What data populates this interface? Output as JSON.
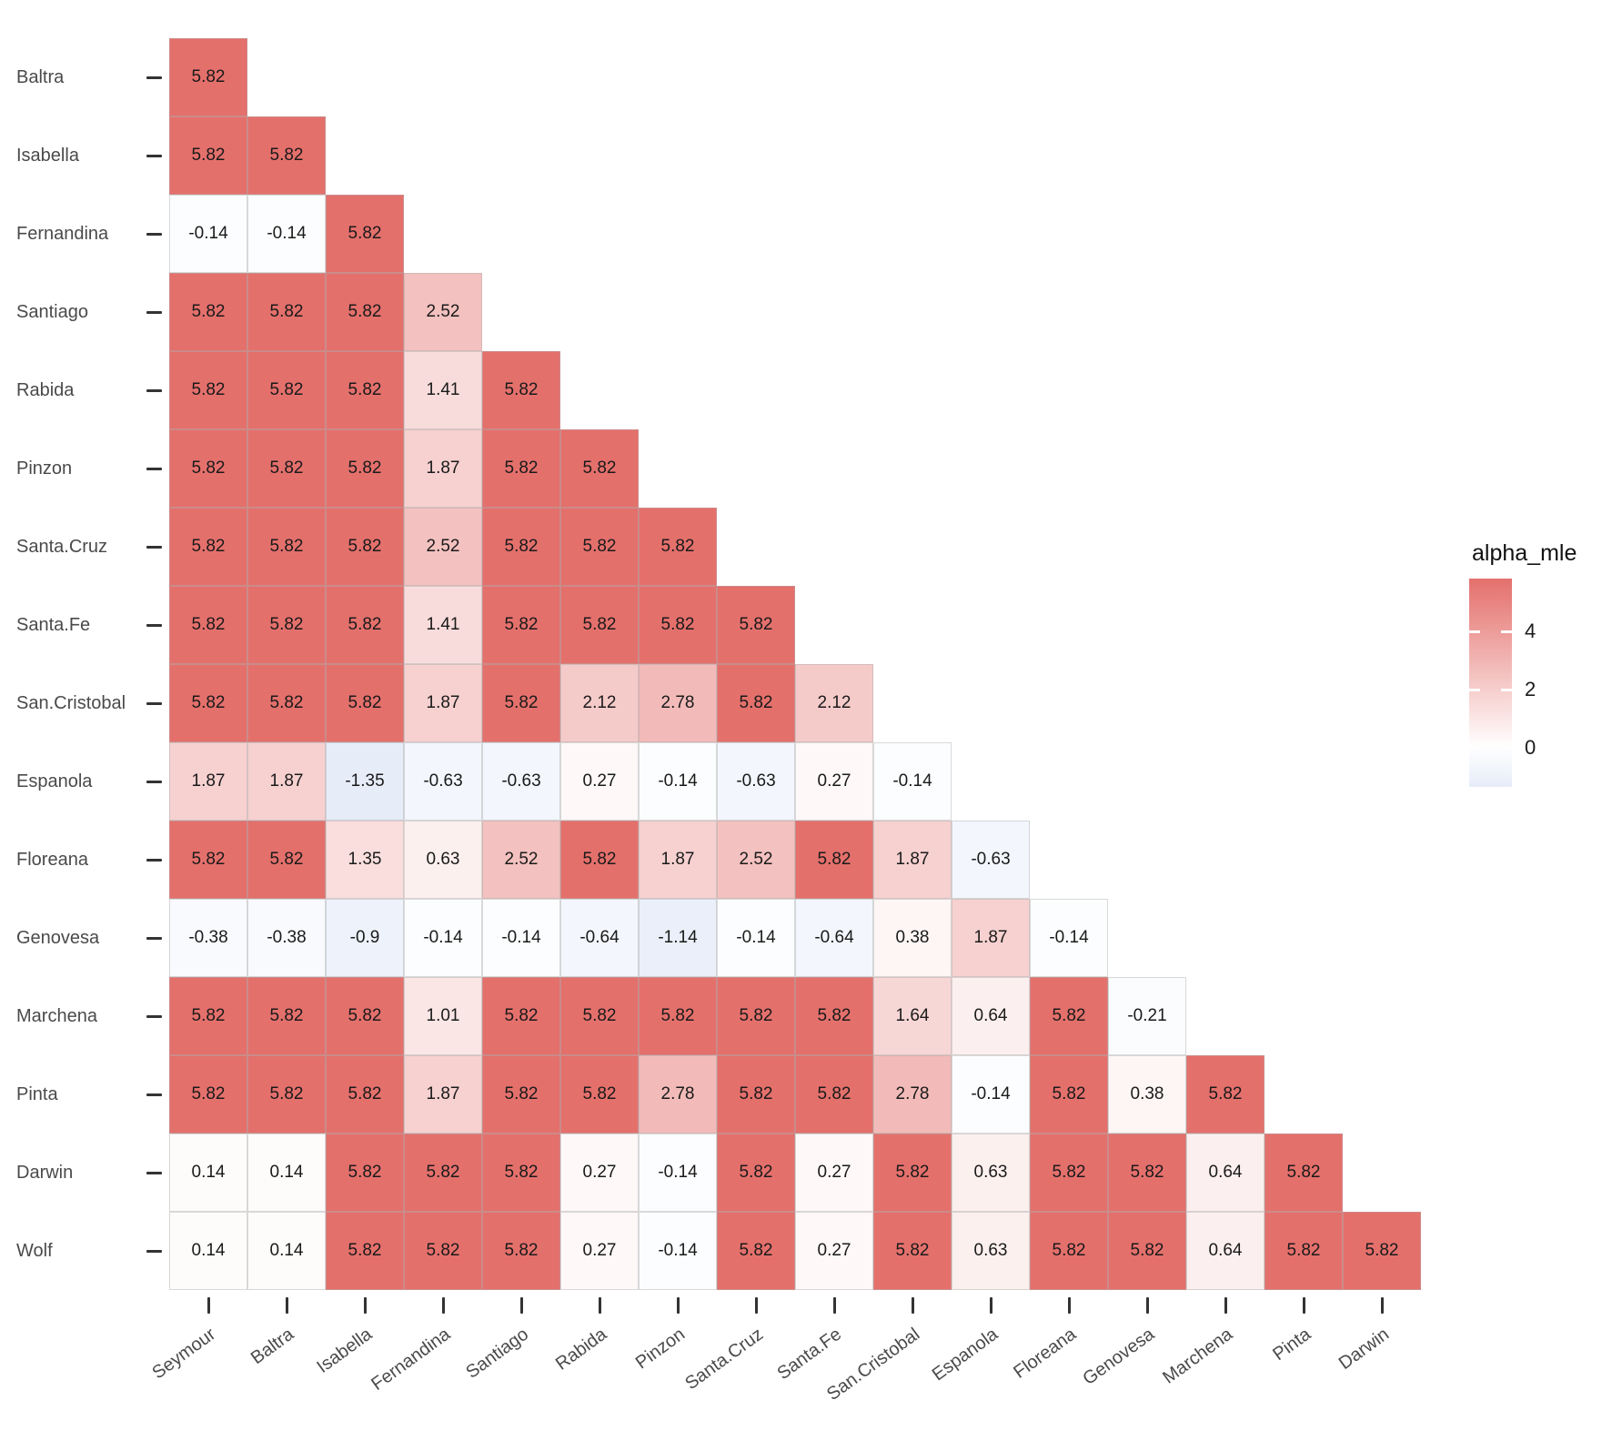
{
  "chart_data": {
    "type": "heatmap",
    "shape": "lower-triangular-matrix",
    "title": "",
    "xlabel": "",
    "ylabel": "",
    "grid": false,
    "legend_title": "alpha_mle",
    "legend_position": "right",
    "legend_ticks": [
      4,
      2,
      0
    ],
    "color_scale": {
      "high_color": "#e4706c",
      "mid_color": "#ffffff",
      "low_color": "#93ade1",
      "midpoint": 0,
      "symmetric_limit": 5.82,
      "legend_domain_max": 5.82,
      "legend_domain_min": -1.35
    },
    "rows": [
      "Baltra",
      "Isabella",
      "Fernandina",
      "Santiago",
      "Rabida",
      "Pinzon",
      "Santa.Cruz",
      "Santa.Fe",
      "San.Cristobal",
      "Espanola",
      "Floreana",
      "Genovesa",
      "Marchena",
      "Pinta",
      "Darwin",
      "Wolf"
    ],
    "columns": [
      "Seymour",
      "Baltra",
      "Isabella",
      "Fernandina",
      "Santiago",
      "Rabida",
      "Pinzon",
      "Santa.Cruz",
      "Santa.Fe",
      "San.Cristobal",
      "Espanola",
      "Floreana",
      "Genovesa",
      "Marchena",
      "Pinta",
      "Darwin"
    ],
    "values": [
      [
        "5.82"
      ],
      [
        "5.82",
        "5.82"
      ],
      [
        "-0.14",
        "-0.14",
        "5.82"
      ],
      [
        "5.82",
        "5.82",
        "5.82",
        "2.52"
      ],
      [
        "5.82",
        "5.82",
        "5.82",
        "1.41",
        "5.82"
      ],
      [
        "5.82",
        "5.82",
        "5.82",
        "1.87",
        "5.82",
        "5.82"
      ],
      [
        "5.82",
        "5.82",
        "5.82",
        "2.52",
        "5.82",
        "5.82",
        "5.82"
      ],
      [
        "5.82",
        "5.82",
        "5.82",
        "1.41",
        "5.82",
        "5.82",
        "5.82",
        "5.82"
      ],
      [
        "5.82",
        "5.82",
        "5.82",
        "1.87",
        "5.82",
        "2.12",
        "2.78",
        "5.82",
        "2.12"
      ],
      [
        "1.87",
        "1.87",
        "-1.35",
        "-0.63",
        "-0.63",
        "0.27",
        "-0.14",
        "-0.63",
        "0.27",
        "-0.14"
      ],
      [
        "5.82",
        "5.82",
        "1.35",
        "0.63",
        "2.52",
        "5.82",
        "1.87",
        "2.52",
        "5.82",
        "1.87",
        "-0.63"
      ],
      [
        "-0.38",
        "-0.38",
        "-0.9",
        "-0.14",
        "-0.14",
        "-0.64",
        "-1.14",
        "-0.14",
        "-0.64",
        "0.38",
        "1.87",
        "-0.14"
      ],
      [
        "5.82",
        "5.82",
        "5.82",
        "1.01",
        "5.82",
        "5.82",
        "5.82",
        "5.82",
        "5.82",
        "1.64",
        "0.64",
        "5.82",
        "-0.21"
      ],
      [
        "5.82",
        "5.82",
        "5.82",
        "1.87",
        "5.82",
        "5.82",
        "2.78",
        "5.82",
        "5.82",
        "2.78",
        "-0.14",
        "5.82",
        "0.38",
        "5.82"
      ],
      [
        "0.14",
        "0.14",
        "5.82",
        "5.82",
        "5.82",
        "0.27",
        "-0.14",
        "5.82",
        "0.27",
        "5.82",
        "0.63",
        "5.82",
        "5.82",
        "0.64",
        "5.82"
      ],
      [
        "0.14",
        "0.14",
        "5.82",
        "5.82",
        "5.82",
        "0.27",
        "-0.14",
        "5.82",
        "0.27",
        "5.82",
        "0.63",
        "5.82",
        "5.82",
        "0.64",
        "5.82",
        "5.82"
      ]
    ]
  }
}
